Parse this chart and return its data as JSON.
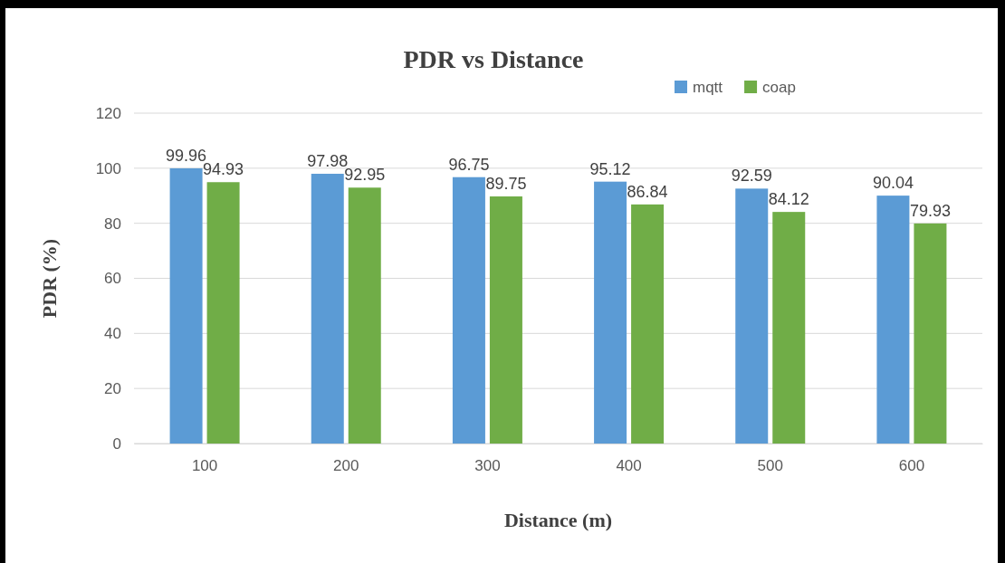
{
  "chart_data": {
    "type": "bar",
    "title": "PDR vs Distance",
    "xlabel": "Distance (m)",
    "ylabel": "PDR (%)",
    "categories": [
      "100",
      "200",
      "300",
      "400",
      "500",
      "600"
    ],
    "series": [
      {
        "name": "mqtt",
        "color": "#5b9bd5",
        "values": [
          99.96,
          97.98,
          96.75,
          95.12,
          92.59,
          90.04
        ]
      },
      {
        "name": "coap",
        "color": "#70ad47",
        "values": [
          94.93,
          92.95,
          89.75,
          86.84,
          84.12,
          79.93
        ]
      }
    ],
    "ylim": [
      0,
      120
    ],
    "yticks": [
      0,
      20,
      40,
      60,
      80,
      100,
      120
    ],
    "grid": "y",
    "legend": "top right",
    "data_labels": true
  }
}
